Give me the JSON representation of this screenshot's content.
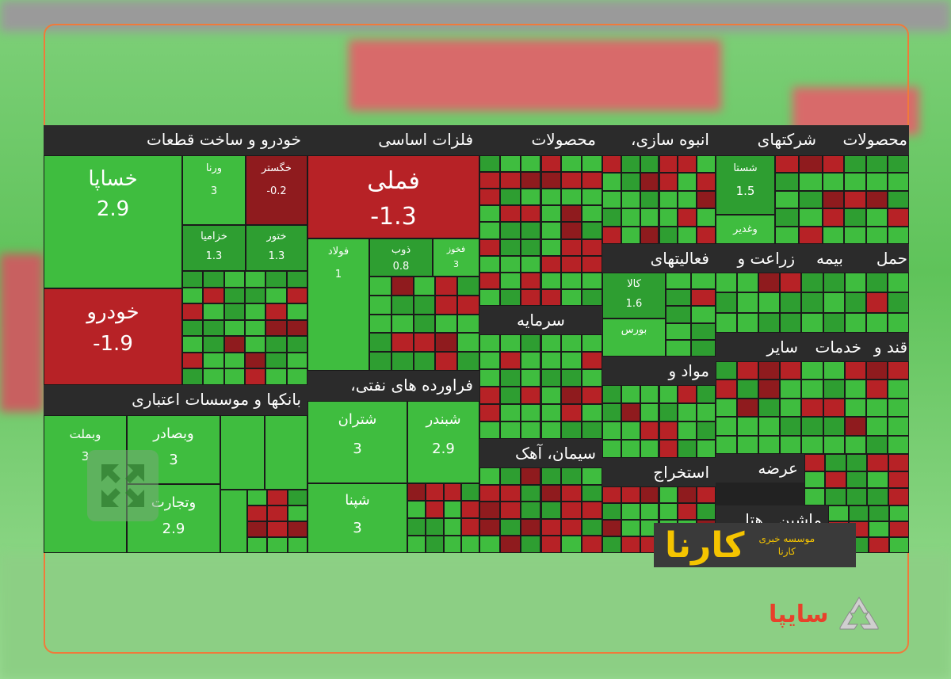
{
  "chart_data": {
    "type": "treemap",
    "sectors": [
      {
        "name": "خودرو و ساخت قطعات",
        "tiles": [
          {
            "symbol": "خساپا",
            "value": 2.9
          },
          {
            "symbol": "خودرو",
            "value": -1.9
          },
          {
            "symbol": "ورنا",
            "value": 3.0
          },
          {
            "symbol": "خگستر",
            "value": -0.2
          },
          {
            "symbol": "خزامیا",
            "value": 1.3
          },
          {
            "symbol": "ختور",
            "value": 1.3
          }
        ]
      },
      {
        "name": "فلزات اساسی",
        "tiles": [
          {
            "symbol": "فملی",
            "value": -1.3
          },
          {
            "symbol": "فولاد",
            "value": 1.0
          },
          {
            "symbol": "ذوب",
            "value": 0.8
          },
          {
            "symbol": "فخوز",
            "value": 3.0
          }
        ]
      },
      {
        "name": "بانکها و موسسات اعتباری",
        "tiles": [
          {
            "symbol": "وبملت",
            "value": 3.0
          },
          {
            "symbol": "وبصادر",
            "value": 3.0
          },
          {
            "symbol": "وتجارت",
            "value": 2.9
          }
        ]
      },
      {
        "name": "فراورده های نفتی،",
        "tiles": [
          {
            "symbol": "شتران",
            "value": 3.0
          },
          {
            "symbol": "شبندر",
            "value": 2.9
          },
          {
            "symbol": "شپنا",
            "value": 3.0
          }
        ]
      },
      {
        "name": "محصولات",
        "tiles": []
      },
      {
        "name": "سرمایه",
        "tiles": []
      },
      {
        "name": "سیمان، آهک",
        "tiles": []
      },
      {
        "name": "انبوه سازی،",
        "tiles": []
      },
      {
        "name": "شرکتهای",
        "tiles": [
          {
            "symbol": "شستا",
            "value": 1.5
          },
          {
            "symbol": "وغدیر",
            "value": null
          }
        ]
      },
      {
        "name": "محصولات",
        "tiles": []
      },
      {
        "name": "زراعت و",
        "tiles": []
      },
      {
        "name": "بیمه",
        "tiles": []
      },
      {
        "name": "فعالیتهای",
        "tiles": [
          {
            "symbol": "کالا",
            "value": 1.6
          },
          {
            "symbol": "بورس",
            "value": null
          }
        ]
      },
      {
        "name": "حمل",
        "tiles": []
      },
      {
        "name": "سایر",
        "tiles": []
      },
      {
        "name": "خدمات",
        "tiles": []
      },
      {
        "name": "قند و",
        "tiles": []
      },
      {
        "name": "مواد و",
        "tiles": []
      },
      {
        "name": "ماشین",
        "tiles": []
      },
      {
        "name": "استخراج",
        "tiles": []
      },
      {
        "name": "عرضه",
        "tiles": []
      },
      {
        "name": "هتل",
        "tiles": []
      }
    ]
  },
  "watermarks": {
    "karna_mark": "کارنا",
    "karna_caption_1": "موسسه خبری",
    "karna_caption_2": "کارنا",
    "saipa": "سایپا"
  },
  "colors": {
    "up": "#3fbd3f",
    "down": "#b72226",
    "header": "#2b2b2b",
    "frame": "#f07a3a"
  }
}
